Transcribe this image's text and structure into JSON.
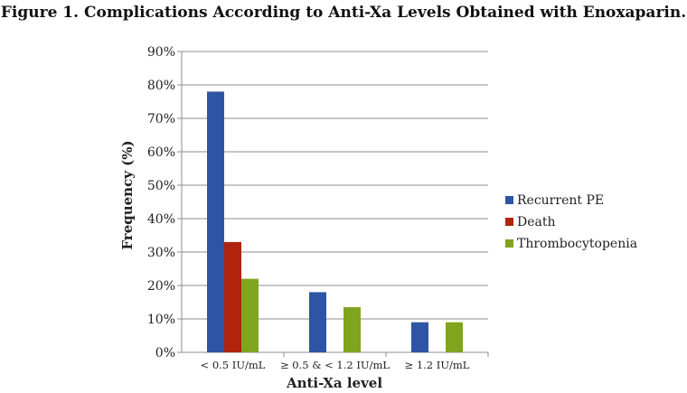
{
  "chart_data": {
    "type": "bar",
    "title": "Figure 1. Complications According to Anti-Xa Levels Obtained with Enoxaparin.",
    "xlabel": "Anti-Xa level",
    "ylabel": "Frequency (%)",
    "ylim": [
      0,
      90
    ],
    "y_ticks": [
      "0%",
      "10%",
      "20%",
      "30%",
      "40%",
      "50%",
      "60%",
      "70%",
      "80%",
      "90%"
    ],
    "grid": true,
    "legend_position": "right",
    "categories": [
      "< 0.5 IU/mL",
      "≥ 0.5 & < 1.2 IU/mL",
      "≥ 1.2 IU/mL"
    ],
    "series": [
      {
        "name": "Recurrent PE",
        "color": "#2E55A4",
        "values": [
          78,
          18,
          9
        ]
      },
      {
        "name": "Death",
        "color": "#B0230F",
        "values": [
          33,
          0,
          0
        ]
      },
      {
        "name": "Thrombocytopenia",
        "color": "#7FA41E",
        "values": [
          22,
          13.5,
          9
        ]
      }
    ]
  }
}
